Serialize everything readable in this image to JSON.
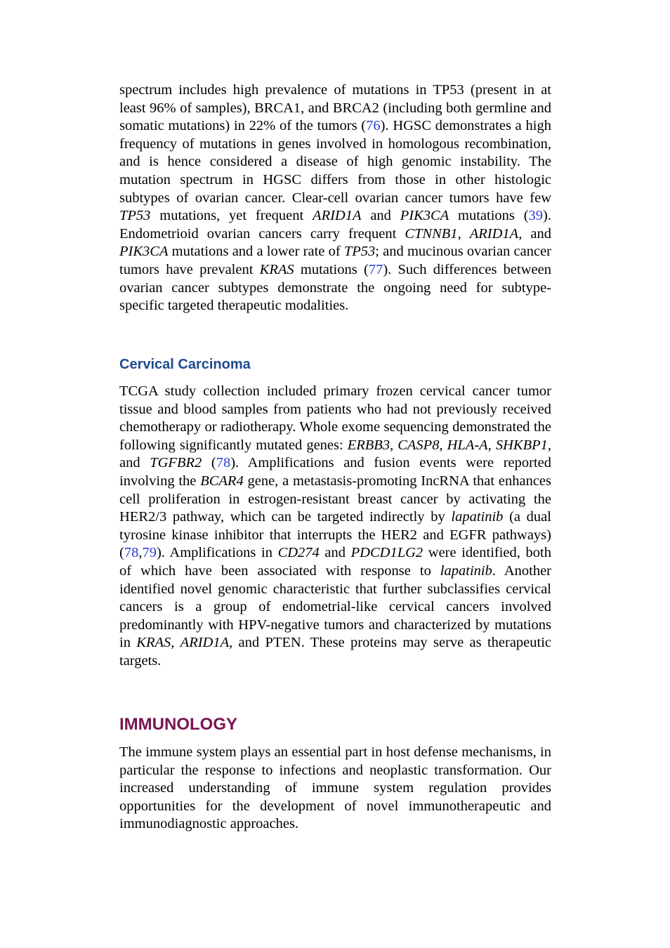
{
  "sections": [
    {
      "paragraphs": [
        {
          "runs": [
            "spectrum includes high prevalence of mutations in TP53 (present in at least 96% of samples), BRCA1, and BRCA2 (including both germline and somatic mutations) in 22% of the tumors (",
            {
              "text": "76",
              "style": "link"
            },
            "). HGSC demonstrates a high frequency of mutations in genes involved in homologous recombination, and is hence considered a disease of high genomic instability. The mutation spectrum in HGSC differs from those in other histologic subtypes of ovarian cancer. Clear-cell ovarian cancer tumors have few ",
            {
              "text": "TP53",
              "style": "italic"
            },
            " mutations, yet frequent ",
            {
              "text": "ARID1A",
              "style": "italic"
            },
            " and ",
            {
              "text": "PIK3CA",
              "style": "italic"
            },
            " mutations (",
            {
              "text": "39",
              "style": "link"
            },
            "). Endometrioid ovarian cancers carry frequent ",
            {
              "text": "CTNNB1",
              "style": "italic"
            },
            ", ",
            {
              "text": "ARID1A",
              "style": "italic"
            },
            ", and ",
            {
              "text": "PIK3CA",
              "style": "italic"
            },
            " mutations and a lower rate of ",
            {
              "text": "TP53",
              "style": "italic"
            },
            "; and mucinous ovarian cancer tumors have prevalent ",
            {
              "text": "KRAS",
              "style": "italic"
            },
            " mutations (",
            {
              "text": "77",
              "style": "link"
            },
            "). Such differences between ovarian cancer subtypes demonstrate the ongoing need for subtype-specific targeted therapeutic modalities."
          ]
        }
      ]
    },
    {
      "heading": "Cervical Carcinoma",
      "paragraphs": [
        {
          "runs": [
            "TCGA study collection included primary frozen cervical cancer tumor tissue and blood samples from patients who had not previously received chemotherapy or radiotherapy. Whole exome sequencing demonstrated the following significantly mutated genes: ",
            {
              "text": "ERBB3",
              "style": "italic"
            },
            ", ",
            {
              "text": "CASP8",
              "style": "italic"
            },
            ", ",
            {
              "text": "HLA-A",
              "style": "italic"
            },
            ", ",
            {
              "text": "SHKBP1,",
              "style": "italic"
            },
            " and ",
            {
              "text": "TGFBR2",
              "style": "italic"
            },
            " (",
            {
              "text": "78",
              "style": "link"
            },
            "). Amplifications and fusion events were reported involving the ",
            {
              "text": "BCAR4",
              "style": "italic"
            },
            " gene, a metastasis-promoting IncRNA that enhances cell proliferation in estrogen-resistant breast cancer by activating the HER2/3 pathway, which can be targeted indirectly by ",
            {
              "text": "lapatinib",
              "style": "italic"
            },
            " (a dual tyrosine kinase inhibitor that interrupts the HER2 and EGFR pathways) (",
            {
              "text": "78",
              "style": "link"
            },
            ",",
            {
              "text": "79",
              "style": "link"
            },
            "). Amplifications in ",
            {
              "text": "CD274",
              "style": "italic"
            },
            " and ",
            {
              "text": "PDCD1LG2",
              "style": "italic"
            },
            " were identified, both of which have been associated with response to ",
            {
              "text": "lapatinib",
              "style": "italic"
            },
            ". Another identified novel genomic characteristic that further subclassifies cervical cancers is a group of endometrial-like cervical cancers involved predominantly with HPV-negative tumors and characterized by mutations in ",
            {
              "text": "KRAS",
              "style": "italic"
            },
            ", ",
            {
              "text": "ARID1A",
              "style": "italic"
            },
            ", and PTEN. These proteins may serve as therapeutic targets."
          ]
        }
      ]
    },
    {
      "heading": "IMMUNOLOGY",
      "paragraphs": [
        {
          "runs": [
            "The immune system plays an essential part in host defense mechanisms, in particular the response to infections and neoplastic transformation. Our increased understanding of immune system regulation provides opportunities for the development of novel immunotherapeutic and immunodiagnostic approaches."
          ]
        }
      ]
    }
  ]
}
